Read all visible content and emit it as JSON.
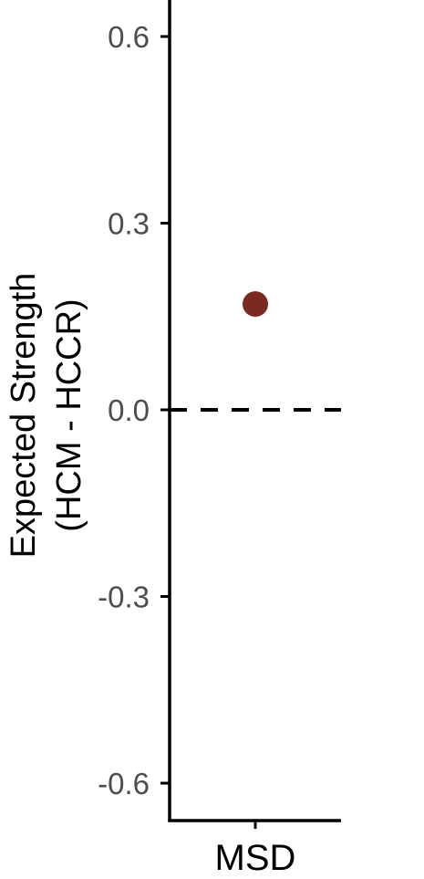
{
  "chart_data": {
    "type": "scatter",
    "categories": [
      "MSD"
    ],
    "values": [
      0.17
    ],
    "ylabel_line1": "Expected Strength",
    "ylabel_line2": "(HCM - HCCR)",
    "xlabel": "",
    "ylim": [
      -0.66,
      0.66
    ],
    "yticks": [
      0.6,
      0.3,
      0.0,
      -0.3,
      -0.6
    ],
    "ytick_labels": [
      "0.6",
      "0.3",
      "0.0",
      "-0.3",
      "-0.6"
    ],
    "reference_line": 0.0,
    "reference_line_style": "dashed",
    "point_color": "#7B2A22",
    "axis_color": "#000000",
    "tick_label_color": "#4D4D4D"
  }
}
